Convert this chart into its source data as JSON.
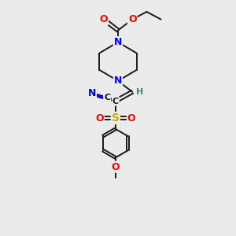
{
  "bg_color": "#ebebeb",
  "bond_color": "#1a1a1a",
  "colors": {
    "O": "#ff0000",
    "N": "#0000ff",
    "S": "#ccaa00",
    "C": "#1a1a1a",
    "H": "#3a8a5a",
    "CN_N": "#0000cc"
  },
  "fig_width": 3.0,
  "fig_height": 3.0,
  "dpi": 100
}
